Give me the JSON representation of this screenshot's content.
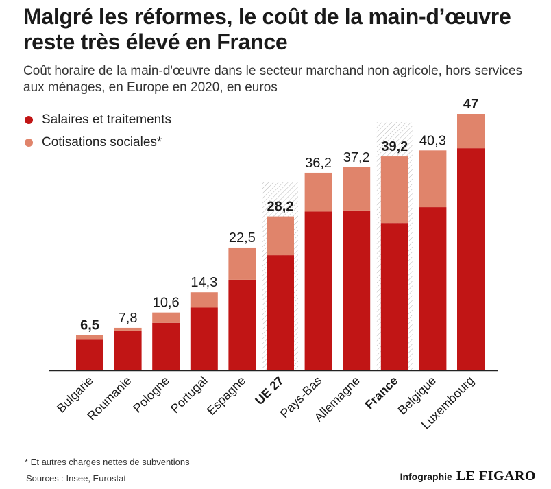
{
  "header": {
    "title": "Malgré les réformes, le coût de la main-d’œuvre reste très élevé en France",
    "subtitle": "Coût horaire de la main-d'œuvre dans le secteur marchand non agricole, hors services aux ménages, en Europe en 2020, en euros"
  },
  "legend": {
    "items": [
      {
        "label": "Salaires et traitements",
        "color": "#c11515"
      },
      {
        "label": "Cotisations sociales*",
        "color": "#e0846b"
      }
    ]
  },
  "chart_data": {
    "type": "bar",
    "stacked": true,
    "categories": [
      "Bulgarie",
      "Roumanie",
      "Pologne",
      "Portugal",
      "Espagne",
      "UE 27",
      "Pays-Bas",
      "Allemagne",
      "France",
      "Belgique",
      "Luxembourg"
    ],
    "highlighted": [
      "Bulgarie",
      "UE 27",
      "France",
      "Luxembourg"
    ],
    "hatched": [
      "UE 27",
      "France"
    ],
    "totals": [
      6.5,
      7.8,
      10.6,
      14.3,
      22.5,
      28.2,
      36.2,
      37.2,
      39.2,
      40.3,
      47
    ],
    "total_labels": [
      "6,5",
      "7,8",
      "10,6",
      "14,3",
      "22,5",
      "28,2",
      "36,2",
      "37,2",
      "39,2",
      "40,3",
      "47"
    ],
    "series": [
      {
        "name": "Salaires et traitements",
        "color": "#c11515",
        "values": [
          5.6,
          7.3,
          8.7,
          11.5,
          16.6,
          21.1,
          29.1,
          29.3,
          27.0,
          29.9,
          40.7
        ]
      },
      {
        "name": "Cotisations sociales*",
        "color": "#e0846b",
        "values": [
          0.9,
          0.5,
          1.9,
          2.8,
          5.9,
          7.1,
          7.1,
          7.9,
          12.2,
          10.4,
          6.3
        ]
      }
    ],
    "ylim": [
      0,
      47
    ],
    "grid": false,
    "legend_position": "top-left"
  },
  "footer": {
    "footnote": "* Et autres charges nettes de subventions",
    "sources": "Sources : Insee, Eurostat",
    "credit_label": "Infographie",
    "credit_brand": "LE FIGARO"
  }
}
